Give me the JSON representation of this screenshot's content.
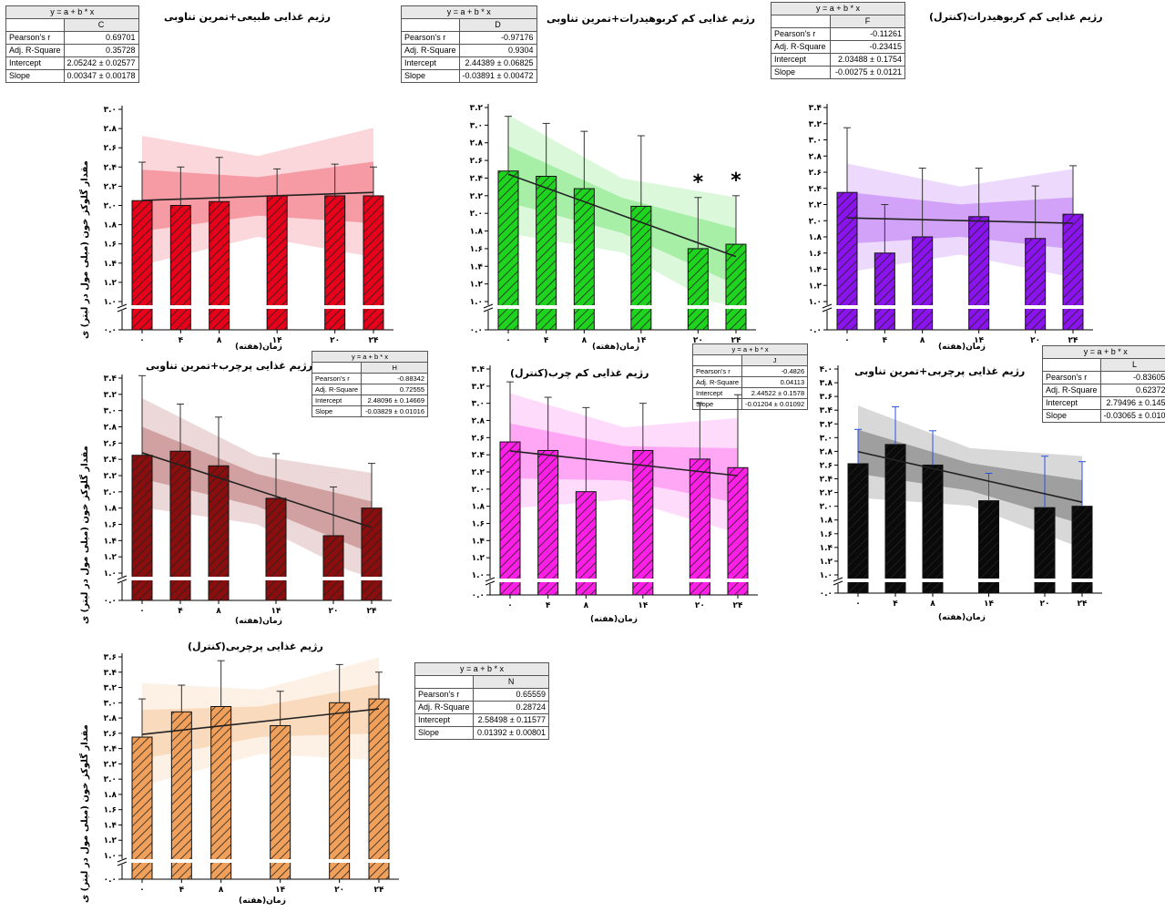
{
  "common": {
    "x_label": "زمان(هفته)",
    "y_label": "مقدار گلوکز خون (میلی مول در لیتر) ی",
    "equation": "y = a + b * x",
    "stat_names": [
      "Pearson's r",
      "Adj. R-Square",
      "Intercept",
      "Slope"
    ],
    "x_tick_labels": [
      "۰",
      "۴",
      "۸",
      "۱۴",
      "۲۰",
      "۲۴"
    ]
  },
  "chart_data": [
    {
      "type": "bar",
      "id": "C",
      "title": "رژیم غذایی طبیعی+تمرین تناوبی",
      "color": "#e8001a",
      "x": [
        0,
        4,
        8,
        14,
        20,
        24
      ],
      "values": [
        2.05,
        2.0,
        2.04,
        2.1,
        2.1,
        2.1
      ],
      "errors": [
        0.4,
        0.4,
        0.46,
        0.28,
        0.33,
        0.3
      ],
      "ylim": [
        0,
        3.0
      ],
      "y_ticks": [
        "۰.۰",
        "۱.۰",
        "۱.۲",
        "۱.۴",
        "۱.۶",
        "۱.۸",
        "۲.۰",
        "۲.۲",
        "۲.۴",
        "۲.۶",
        "۲.۸",
        "۳.۰"
      ],
      "fit": {
        "intercept": 2.05242,
        "slope": 0.00347
      },
      "stats": {
        "label": "C",
        "values": [
          "0.69701",
          "0.35728",
          "2.05242 ± 0.02577",
          "0.00347 ± 0.00178"
        ]
      },
      "stars": []
    },
    {
      "type": "bar",
      "id": "D",
      "title": "رژیم غذایی کم کربوهیدرات+تمرین تناوبی",
      "color": "#1fd41f",
      "x": [
        0,
        4,
        8,
        14,
        20,
        24
      ],
      "values": [
        2.48,
        2.42,
        2.28,
        2.08,
        1.6,
        1.65
      ],
      "errors": [
        0.62,
        0.6,
        0.65,
        0.8,
        0.58,
        0.55
      ],
      "ylim": [
        0,
        3.2
      ],
      "y_ticks": [
        "۰.۰",
        "۱.۰",
        "۱.۲",
        "۱.۴",
        "۱.۶",
        "۱.۸",
        "۲.۰",
        "۲.۲",
        "۲.۴",
        "۲.۶",
        "۲.۸",
        "۳.۰",
        "۳.۲"
      ],
      "fit": {
        "intercept": 2.44389,
        "slope": -0.03891
      },
      "stats": {
        "label": "D",
        "values": [
          "-0.97176",
          "0.9304",
          "2.44389 ± 0.06825",
          "-0.03891 ± 0.00472"
        ]
      },
      "stars": [
        {
          "x": 20,
          "text": "*"
        },
        {
          "x": 24,
          "text": "*"
        }
      ]
    },
    {
      "type": "bar",
      "id": "F",
      "title": "رژیم غذایی کم کربوهیدرات(کنترل)",
      "color": "#8b14ee",
      "x": [
        0,
        4,
        8,
        14,
        20,
        24
      ],
      "values": [
        2.35,
        1.6,
        1.8,
        2.05,
        1.78,
        2.08
      ],
      "errors": [
        0.8,
        0.6,
        0.85,
        0.6,
        0.65,
        0.6
      ],
      "ylim": [
        0,
        3.4
      ],
      "y_ticks": [
        "۰.۰",
        "۱.۰",
        "۱.۲",
        "۱.۴",
        "۱.۶",
        "۱.۸",
        "۲.۰",
        "۲.۲",
        "۲.۴",
        "۲.۶",
        "۲.۸",
        "۳.۰",
        "۳.۲",
        "۳.۴"
      ],
      "fit": {
        "intercept": 2.03488,
        "slope": -0.00275
      },
      "stats": {
        "label": "F",
        "values": [
          "-0.11261",
          "-0.23415",
          "2.03488 ± 0.1754",
          "-0.00275 ± 0.0121"
        ]
      },
      "stars": []
    },
    {
      "type": "bar",
      "id": "H",
      "title": "رژیم غذایی پرچرب+تمرین تناوبی",
      "color": "#8b0e0e",
      "x": [
        0,
        4,
        8,
        14,
        20,
        24
      ],
      "values": [
        2.45,
        2.5,
        2.32,
        1.92,
        1.46,
        1.8
      ],
      "errors": [
        0.98,
        0.58,
        0.6,
        0.55,
        0.6,
        0.55
      ],
      "ylim": [
        0,
        3.4
      ],
      "y_ticks": [
        "۰.۰",
        "۱.۰",
        "۱.۲",
        "۱.۴",
        "۱.۶",
        "۱.۸",
        "۲.۰",
        "۲.۲",
        "۲.۴",
        "۲.۶",
        "۲.۸",
        "۳.۰",
        "۳.۲",
        "۳.۴"
      ],
      "fit": {
        "intercept": 2.48096,
        "slope": -0.03829
      },
      "stats": {
        "label": "H",
        "values": [
          "-0.88342",
          "0.72555",
          "2.48096 ± 0.14669",
          "-0.03829 ± 0.01016"
        ]
      },
      "stars": []
    },
    {
      "type": "bar",
      "id": "J",
      "title": "رژیم غذایی کم چرب(کنترل)",
      "color": "#ff1fe6",
      "x": [
        0,
        4,
        8,
        14,
        20,
        24
      ],
      "values": [
        2.55,
        2.45,
        1.97,
        2.45,
        2.35,
        2.25
      ],
      "errors": [
        0.7,
        0.62,
        0.98,
        0.55,
        0.65,
        0.85
      ],
      "ylim": [
        0,
        3.4
      ],
      "y_ticks": [
        "۰.۰",
        "۱.۰",
        "۱.۲",
        "۱.۴",
        "۱.۶",
        "۱.۸",
        "۲.۰",
        "۲.۲",
        "۲.۴",
        "۲.۶",
        "۲.۸",
        "۳.۰",
        "۳.۲",
        "۳.۴"
      ],
      "fit": {
        "intercept": 2.44522,
        "slope": -0.01204
      },
      "stats": {
        "label": "J",
        "values": [
          "-0.4826",
          "0.04113",
          "2.44522 ± 0.1578",
          "-0.01204 ± 0.01092"
        ]
      },
      "stars": []
    },
    {
      "type": "bar",
      "id": "L",
      "title": "رژیم غذایی پرچربی+تمرین تناوبی",
      "color": "#0a0a0a",
      "x": [
        0,
        4,
        8,
        14,
        20,
        24
      ],
      "values": [
        2.62,
        2.9,
        2.6,
        2.08,
        1.98,
        2.0
      ],
      "errors": [
        0.5,
        0.55,
        0.5,
        0.4,
        0.75,
        0.65
      ],
      "ylim": [
        0,
        4.0
      ],
      "y_ticks": [
        "۰.۰",
        "۱.۰",
        "۱.۲",
        "۱.۴",
        "۱.۶",
        "۱.۸",
        "۲.۰",
        "۲.۲",
        "۲.۴",
        "۲.۶",
        "۲.۸",
        "۳.۰",
        "۳.۲",
        "۳.۴",
        "۳.۶",
        "۳.۸",
        "۴.۰"
      ],
      "fit": {
        "intercept": 2.79496,
        "slope": -0.03065
      },
      "stats": {
        "label": "L",
        "values": [
          "-0.83605",
          "0.62372",
          "2.79496 ± 0.145",
          "-0.03065 ± 0.010"
        ]
      },
      "stars": []
    },
    {
      "type": "bar",
      "id": "N",
      "title": "رژیم غذایی پرچربی(کنترل)",
      "color": "#f0a05a",
      "x": [
        0,
        4,
        8,
        14,
        20,
        24
      ],
      "values": [
        2.55,
        2.88,
        2.95,
        2.7,
        3.0,
        3.05
      ],
      "errors": [
        0.5,
        0.35,
        0.6,
        0.45,
        0.5,
        0.35
      ],
      "ylim": [
        0,
        3.6
      ],
      "y_ticks": [
        "۰.۰",
        "۱.۰",
        "۱.۲",
        "۱.۴",
        "۱.۶",
        "۱.۸",
        "۲.۰",
        "۲.۲",
        "۲.۴",
        "۲.۶",
        "۲.۸",
        "۳.۰",
        "۳.۲",
        "۳.۴",
        "۳.۶"
      ],
      "fit": {
        "intercept": 2.58498,
        "slope": 0.01392
      },
      "stats": {
        "label": "N",
        "values": [
          "0.65559",
          "0.28724",
          "2.58498 ± 0.11577",
          "0.01392 ± 0.00801"
        ]
      },
      "stars": []
    }
  ]
}
